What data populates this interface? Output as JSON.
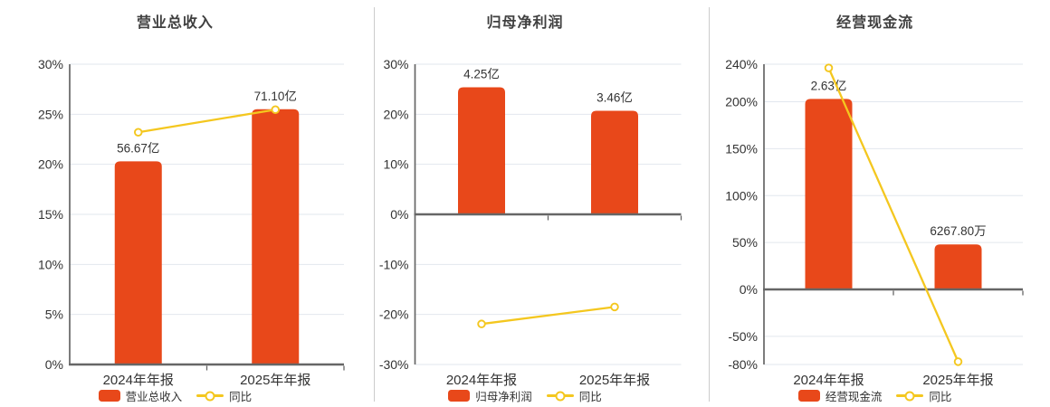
{
  "colors": {
    "bar": "#e8481a",
    "line": "#f4c71f",
    "grid": "#e2e7ee",
    "axis": "#666666",
    "text": "#333333",
    "title": "#404040",
    "separator": "#cccccc",
    "marker_fill": "#ffffff",
    "background": "#ffffff"
  },
  "chart_data": [
    {
      "type": "bar+line",
      "title": "营业总收入",
      "categories": [
        "2024年年报",
        "2025年年报"
      ],
      "y_axis": {
        "min": 0,
        "max": 30,
        "ticks": [
          30,
          25,
          20,
          15,
          10,
          5,
          0
        ],
        "unit": "%",
        "grid": true
      },
      "bar_series": {
        "name": "营业总收入",
        "value_labels": [
          "56.67亿",
          "71.10亿"
        ],
        "display_pct": [
          20.3,
          25.5
        ]
      },
      "line_series": {
        "name": "同比",
        "values_pct": [
          23.2,
          25.46
        ]
      },
      "legend_position": "bottom"
    },
    {
      "type": "bar+line",
      "title": "归母净利润",
      "categories": [
        "2024年年报",
        "2025年年报"
      ],
      "y_axis": {
        "min": -30,
        "max": 30,
        "ticks": [
          30,
          20,
          10,
          0,
          -10,
          -20,
          -30
        ],
        "unit": "%",
        "grid": true
      },
      "bar_series": {
        "name": "归母净利润",
        "value_labels": [
          "4.25亿",
          "3.46亿"
        ],
        "display_pct": [
          25.4,
          20.7
        ]
      },
      "line_series": {
        "name": "同比",
        "values_pct": [
          -21.9,
          -18.5
        ]
      },
      "legend_position": "bottom"
    },
    {
      "type": "bar+line",
      "title": "经营现金流",
      "categories": [
        "2024年年报",
        "2025年年报"
      ],
      "y_axis": {
        "min": -80,
        "max": 240,
        "ticks": [
          240,
          200,
          150,
          100,
          50,
          0,
          -50,
          -80
        ],
        "unit": "%",
        "grid": true
      },
      "bar_series": {
        "name": "经营现金流",
        "value_labels": [
          "2.63亿",
          "6267.80万"
        ],
        "display_pct": [
          203,
          48
        ]
      },
      "line_series": {
        "name": "同比",
        "values_pct": [
          236,
          -77
        ]
      },
      "legend_position": "bottom"
    }
  ]
}
